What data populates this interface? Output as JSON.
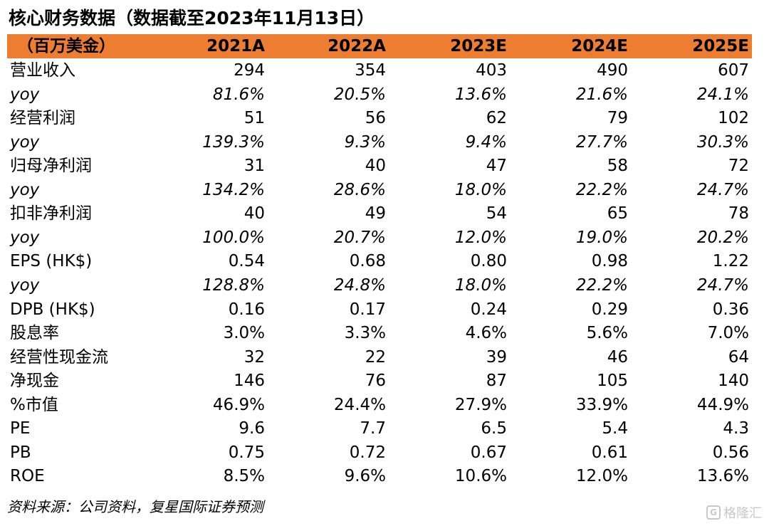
{
  "title": "核心财务数据（数据截至2023年11月13日）",
  "header": {
    "unit_label": "（百万美金）",
    "columns": [
      "2021A",
      "2022A",
      "2023E",
      "2024E",
      "2025E"
    ]
  },
  "rows": [
    {
      "label": "营业收入",
      "style": "normal",
      "values": [
        "294",
        "354",
        "403",
        "490",
        "607"
      ]
    },
    {
      "label": "yoy",
      "style": "italic",
      "values": [
        "81.6%",
        "20.5%",
        "13.6%",
        "21.6%",
        "24.1%"
      ]
    },
    {
      "label": "经营利润",
      "style": "normal",
      "values": [
        "51",
        "56",
        "62",
        "79",
        "102"
      ]
    },
    {
      "label": "yoy",
      "style": "italic",
      "values": [
        "139.3%",
        "9.3%",
        "9.4%",
        "27.7%",
        "30.3%"
      ]
    },
    {
      "label": "归母净利润",
      "style": "normal",
      "values": [
        "31",
        "40",
        "47",
        "58",
        "72"
      ]
    },
    {
      "label": "yoy",
      "style": "italic",
      "values": [
        "134.2%",
        "28.6%",
        "18.0%",
        "22.2%",
        "24.7%"
      ]
    },
    {
      "label": "扣非净利润",
      "style": "normal",
      "values": [
        "40",
        "49",
        "54",
        "65",
        "78"
      ]
    },
    {
      "label": "yoy",
      "style": "italic",
      "values": [
        "100.0%",
        "20.7%",
        "12.0%",
        "19.0%",
        "20.2%"
      ]
    },
    {
      "label": "EPS (HK$)",
      "style": "normal",
      "values": [
        "0.54",
        "0.68",
        "0.80",
        "0.98",
        "1.22"
      ]
    },
    {
      "label": "yoy",
      "style": "italic",
      "values": [
        "128.8%",
        "24.8%",
        "18.0%",
        "22.2%",
        "24.7%"
      ]
    },
    {
      "label": "DPB (HK$)",
      "style": "normal",
      "values": [
        "0.16",
        "0.17",
        "0.24",
        "0.29",
        "0.36"
      ]
    },
    {
      "label": "股息率",
      "style": "normal",
      "values": [
        "3.0%",
        "3.3%",
        "4.6%",
        "5.6%",
        "7.0%"
      ]
    },
    {
      "label": "经营性现金流",
      "style": "normal",
      "values": [
        "32",
        "22",
        "39",
        "46",
        "64"
      ]
    },
    {
      "label": "净现金",
      "style": "normal",
      "values": [
        "146",
        "76",
        "87",
        "105",
        "140"
      ]
    },
    {
      "label": "%市值",
      "style": "normal",
      "values": [
        "46.9%",
        "24.4%",
        "27.9%",
        "33.9%",
        "44.9%"
      ]
    },
    {
      "label": "PE",
      "style": "normal",
      "values": [
        "9.6",
        "7.7",
        "6.5",
        "5.4",
        "4.3"
      ]
    },
    {
      "label": "PB",
      "style": "normal",
      "values": [
        "0.75",
        "0.72",
        "0.67",
        "0.61",
        "0.56"
      ]
    },
    {
      "label": "ROE",
      "style": "normal",
      "values": [
        "8.5%",
        "9.6%",
        "10.6%",
        "12.0%",
        "13.6%"
      ]
    }
  ],
  "source": "资料来源：公司资料，复星国际证券预测",
  "watermark": {
    "logo": "G",
    "text": "格隆汇"
  },
  "colors": {
    "header_band": "#ED7D31",
    "text": "#000000"
  }
}
